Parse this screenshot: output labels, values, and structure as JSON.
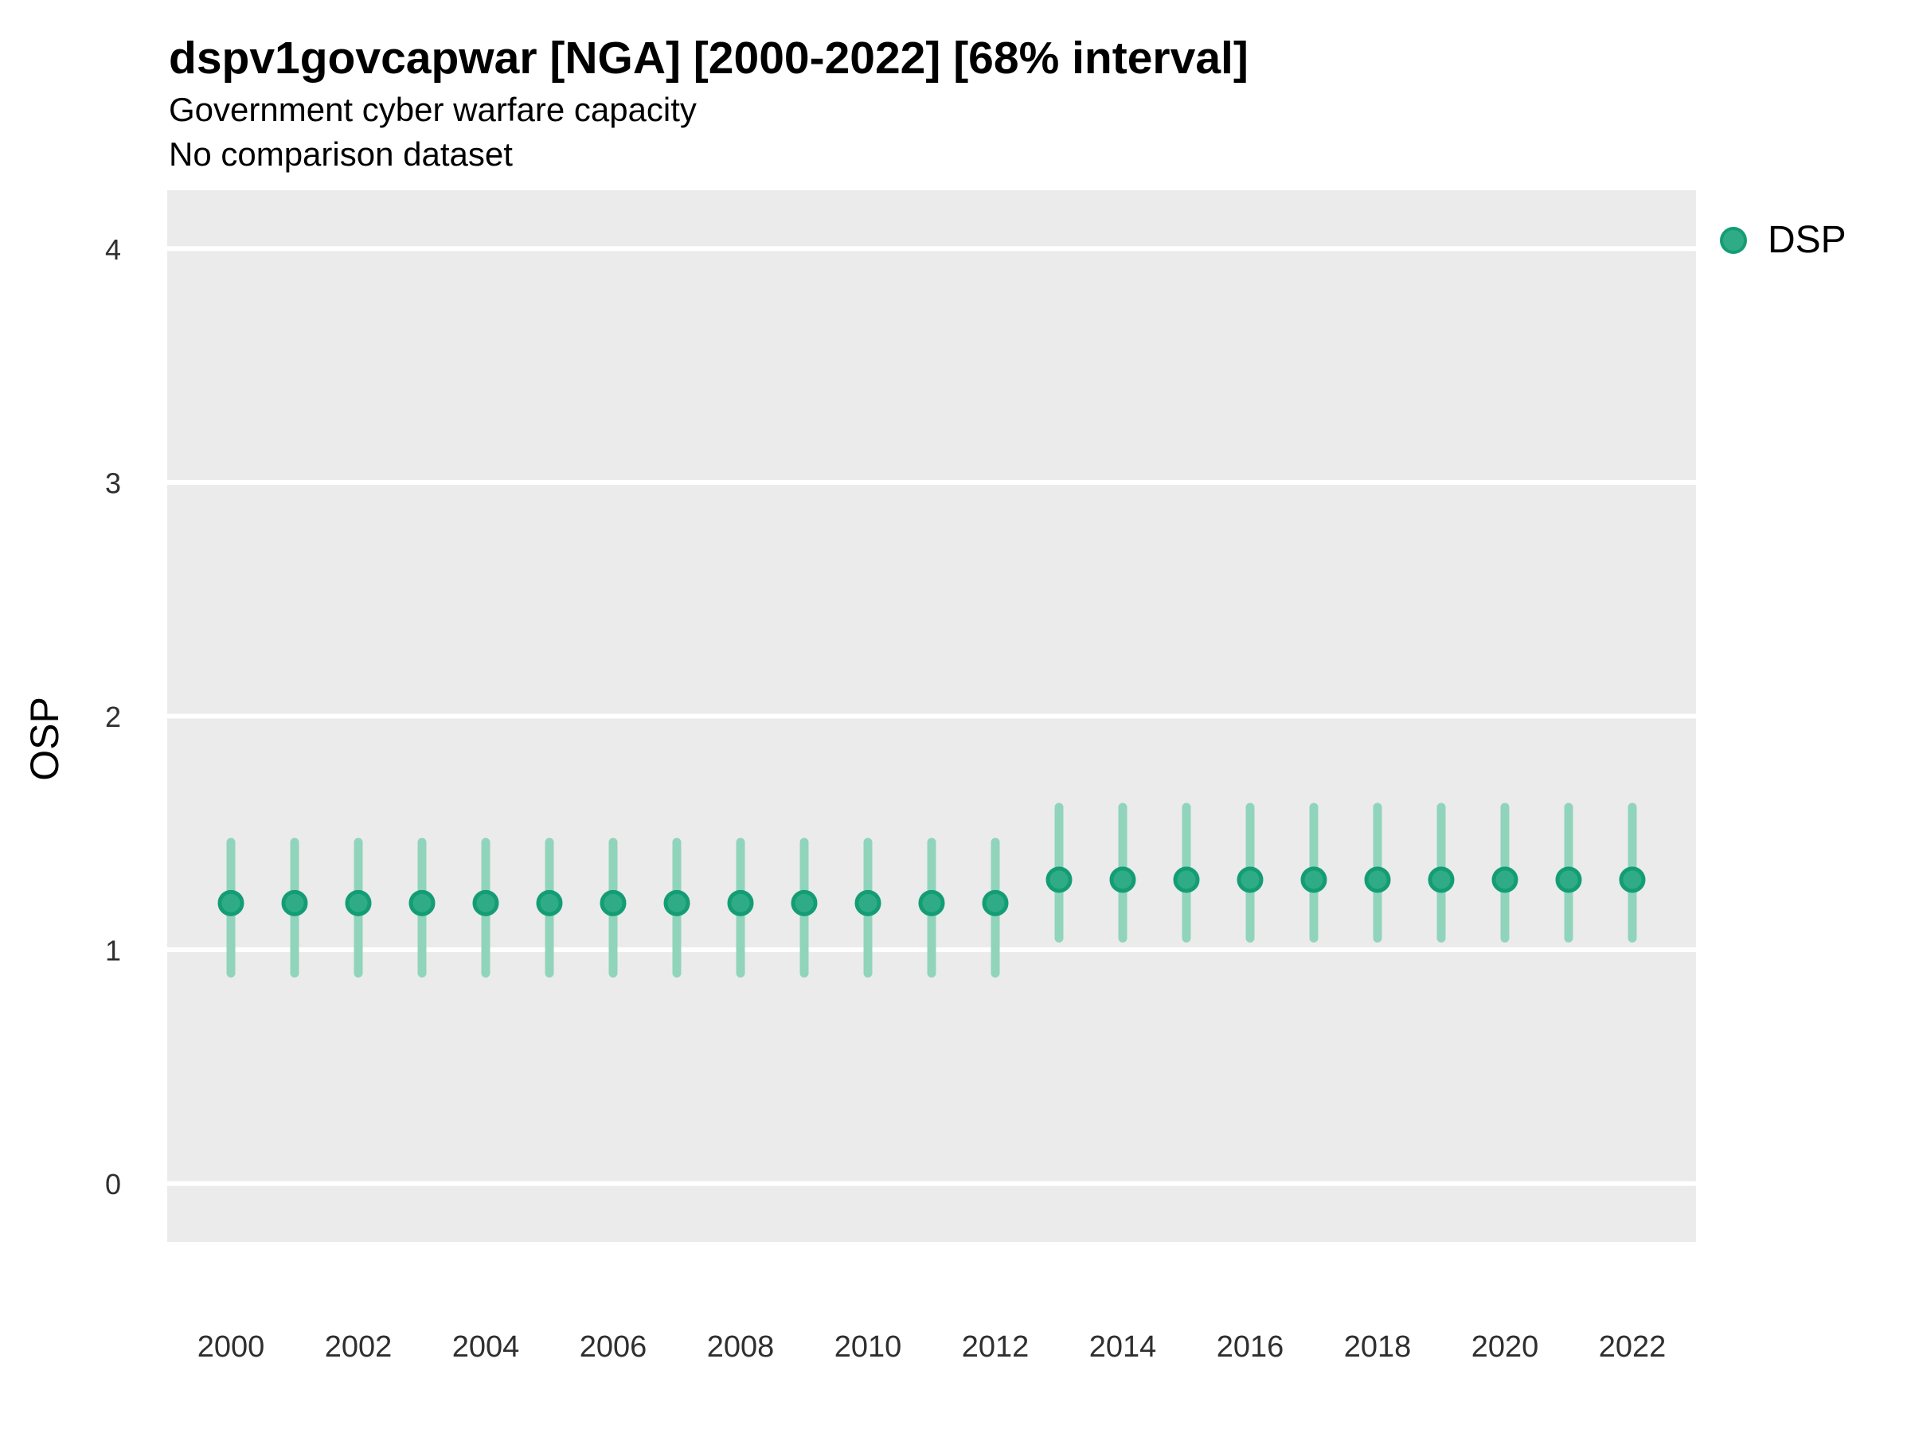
{
  "header": {
    "title": "dspv1govcapwar [NGA] [2000-2022] [68% interval]",
    "subtitle_line1": "Government cyber warfare capacity",
    "subtitle_line2": "No comparison dataset"
  },
  "legend": {
    "label": "DSP"
  },
  "colors": {
    "point_fill": "#2fac85",
    "point_stroke": "#149d75",
    "interval": "#90d4bc",
    "panel_bg": "#ebebeb",
    "grid": "#ffffff",
    "tick_text": "#2f2f2f"
  },
  "chart_data": {
    "type": "scatter",
    "title": "dspv1govcapwar [NGA] [2000-2022] [68% interval]",
    "subtitle": "Government cyber warfare capacity",
    "note": "No comparison dataset",
    "xlabel": "",
    "ylabel": "OSP",
    "legend_position": "right",
    "grid": "horizontal-major-only",
    "interval": "68%",
    "x": [
      2000,
      2001,
      2002,
      2003,
      2004,
      2005,
      2006,
      2007,
      2008,
      2009,
      2010,
      2011,
      2012,
      2013,
      2014,
      2015,
      2016,
      2017,
      2018,
      2019,
      2020,
      2021,
      2022
    ],
    "series": [
      {
        "name": "DSP",
        "values": [
          1.2,
          1.2,
          1.2,
          1.2,
          1.2,
          1.2,
          1.2,
          1.2,
          1.2,
          1.2,
          1.2,
          1.2,
          1.2,
          1.3,
          1.3,
          1.3,
          1.3,
          1.3,
          1.3,
          1.3,
          1.3,
          1.3,
          1.3
        ],
        "lower": [
          0.9,
          0.9,
          0.9,
          0.9,
          0.9,
          0.9,
          0.9,
          0.9,
          0.9,
          0.9,
          0.9,
          0.9,
          0.9,
          1.05,
          1.05,
          1.05,
          1.05,
          1.05,
          1.05,
          1.05,
          1.05,
          1.05,
          1.05
        ],
        "upper": [
          1.46,
          1.46,
          1.46,
          1.46,
          1.46,
          1.46,
          1.46,
          1.46,
          1.46,
          1.46,
          1.46,
          1.46,
          1.46,
          1.61,
          1.61,
          1.61,
          1.61,
          1.61,
          1.61,
          1.61,
          1.61,
          1.61,
          1.61
        ]
      }
    ],
    "xticks": [
      2000,
      2002,
      2004,
      2006,
      2008,
      2010,
      2012,
      2014,
      2016,
      2018,
      2020,
      2022
    ],
    "yticks": [
      0,
      1,
      2,
      3,
      4
    ],
    "xlim": [
      1999,
      2023
    ],
    "ylim": [
      -0.25,
      4.25
    ]
  }
}
